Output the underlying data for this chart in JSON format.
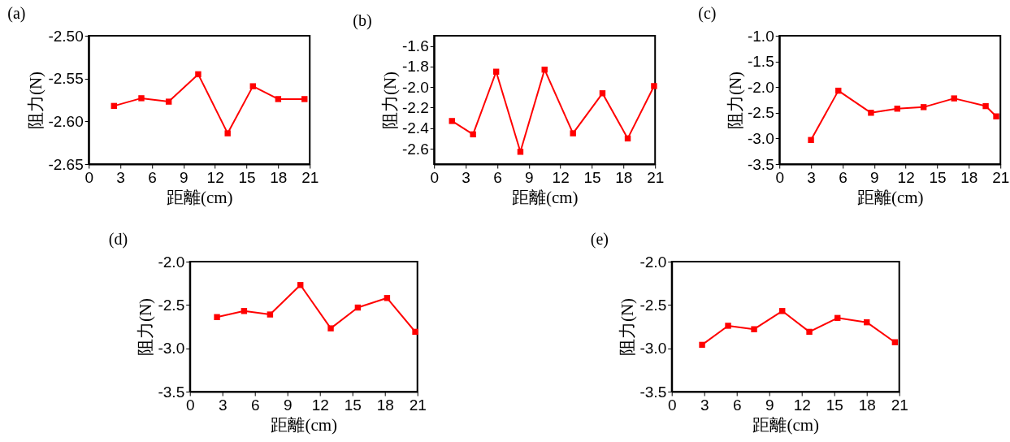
{
  "chart_data": [
    {
      "type": "line",
      "title": "(a)",
      "xlabel": "距離(cm)",
      "ylabel": "阻力(N)",
      "color": "#ff0000",
      "marker": "square",
      "x": [
        2.4,
        5.0,
        7.6,
        10.4,
        13.2,
        15.6,
        18.0,
        20.5
      ],
      "values": [
        -2.582,
        -2.573,
        -2.577,
        -2.545,
        -2.614,
        -2.559,
        -2.574,
        -2.574
      ],
      "xlim": [
        0,
        21
      ],
      "xticks": [
        0,
        3,
        6,
        9,
        12,
        15,
        18,
        21
      ],
      "ylim": [
        -2.65,
        -2.5
      ],
      "yticks": [
        -2.65,
        {
          "value": -2.6,
          "label": "-2.60"
        },
        -2.55,
        {
          "value": -2.5,
          "label": "-2.50"
        }
      ]
    },
    {
      "type": "line",
      "title": "(b)",
      "xlabel": "距離(cm)",
      "ylabel": "阻力(N)",
      "color": "#ff0000",
      "marker": "square",
      "x": [
        1.7,
        3.7,
        5.9,
        8.2,
        10.5,
        13.2,
        16.0,
        18.4,
        20.9
      ],
      "values": [
        -2.33,
        -2.46,
        -1.85,
        -2.63,
        -1.83,
        -2.45,
        -2.06,
        -2.5,
        -1.99
      ],
      "xlim": [
        0,
        21
      ],
      "xticks": [
        0,
        3,
        6,
        9,
        12,
        15,
        18,
        21
      ],
      "ylim": [
        -2.75,
        -1.5
      ],
      "yticks": [
        -2.6,
        -2.4,
        -2.2,
        {
          "value": -2.0,
          "label": "-2.0"
        },
        -1.8,
        -1.6
      ]
    },
    {
      "type": "line",
      "title": "(c)",
      "xlabel": "距離(cm)",
      "ylabel": "阻力(N)",
      "color": "#ff0000",
      "marker": "square",
      "x": [
        3.0,
        5.6,
        8.7,
        11.2,
        13.7,
        16.6,
        19.6,
        20.6
      ],
      "values": [
        -3.03,
        -2.07,
        -2.5,
        -2.42,
        -2.39,
        -2.22,
        -2.37,
        -2.57
      ],
      "xlim": [
        0,
        21
      ],
      "xticks": [
        0,
        3,
        6,
        9,
        12,
        15,
        18,
        21
      ],
      "ylim": [
        -3.5,
        -1.0
      ],
      "yticks": [
        -3.5,
        {
          "value": -3.0,
          "label": "-3.0"
        },
        -2.5,
        {
          "value": -2.0,
          "label": "-2.0"
        },
        -1.5,
        {
          "value": -1.0,
          "label": "-1.0"
        }
      ]
    },
    {
      "type": "line",
      "title": "(d)",
      "xlabel": "距離(cm)",
      "ylabel": "阻力(N)",
      "color": "#ff0000",
      "marker": "square",
      "x": [
        2.5,
        5.0,
        7.4,
        10.2,
        13.0,
        15.5,
        18.2,
        20.8
      ],
      "values": [
        -2.64,
        -2.57,
        -2.61,
        -2.27,
        -2.77,
        -2.53,
        -2.42,
        -2.81
      ],
      "xlim": [
        0,
        21
      ],
      "xticks": [
        0,
        3,
        6,
        9,
        12,
        15,
        18,
        21
      ],
      "ylim": [
        -3.5,
        -2.0
      ],
      "yticks": [
        -3.5,
        {
          "value": -3.0,
          "label": "-3.0"
        },
        -2.5,
        {
          "value": -2.0,
          "label": "-2.0"
        }
      ]
    },
    {
      "type": "line",
      "title": "(e)",
      "xlabel": "距離(cm)",
      "ylabel": "阻力(N)",
      "color": "#ff0000",
      "marker": "square",
      "x": [
        2.8,
        5.2,
        7.6,
        10.2,
        12.7,
        15.3,
        18.0,
        20.6
      ],
      "values": [
        -2.96,
        -2.74,
        -2.78,
        -2.57,
        -2.81,
        -2.65,
        -2.7,
        -2.93
      ],
      "xlim": [
        0,
        21
      ],
      "xticks": [
        0,
        3,
        6,
        9,
        12,
        15,
        18,
        21
      ],
      "ylim": [
        -3.5,
        -2.0
      ],
      "yticks": [
        -3.5,
        {
          "value": -3.0,
          "label": "-3.0"
        },
        -2.5,
        {
          "value": -2.0,
          "label": "-2.0"
        }
      ]
    }
  ]
}
